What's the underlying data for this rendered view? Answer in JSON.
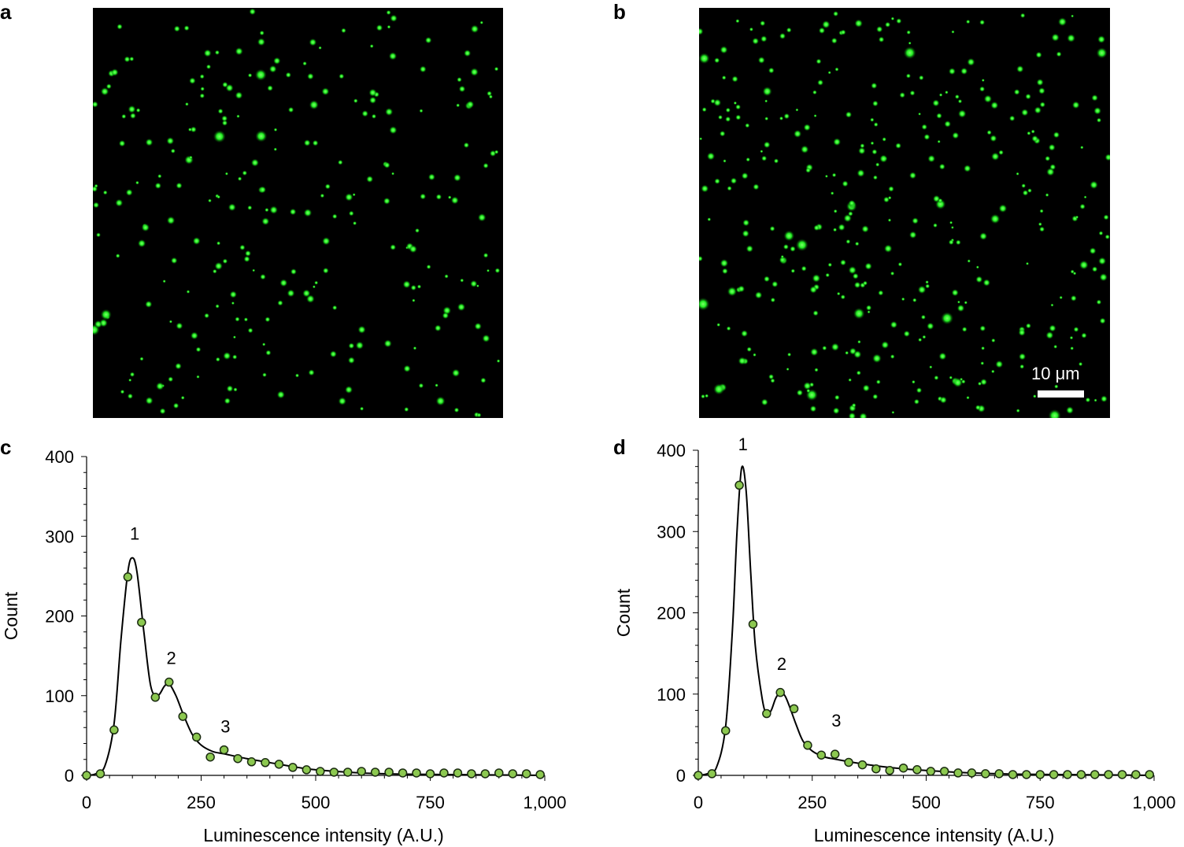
{
  "panels": {
    "a": "a",
    "b": "b",
    "c": "c",
    "d": "d"
  },
  "scale_bar": {
    "label": "10 μm"
  },
  "colors": {
    "spot": "#22ee22",
    "marker_fill": "#8cc850",
    "marker_edge": "#1a2a10",
    "curve": "#000000"
  },
  "chart_data": [
    {
      "panel": "c",
      "type": "scatter",
      "xlabel": "Luminescence intensity (A.U.)",
      "ylabel": "Count",
      "xlim": [
        0,
        1000
      ],
      "ylim": [
        0,
        400
      ],
      "xticks": [
        0,
        250,
        500,
        750,
        1000
      ],
      "xtick_labels": [
        "0",
        "250",
        "500",
        "750",
        "1,000"
      ],
      "yticks": [
        0,
        100,
        200,
        300,
        400
      ],
      "ytick_labels": [
        "0",
        "100",
        "200",
        "300",
        "400"
      ],
      "x": [
        0,
        30,
        60,
        90,
        120,
        150,
        180,
        210,
        240,
        270,
        300,
        330,
        360,
        390,
        420,
        450,
        480,
        510,
        540,
        570,
        600,
        630,
        660,
        690,
        720,
        750,
        780,
        810,
        840,
        870,
        900,
        930,
        960,
        990
      ],
      "y": [
        0,
        2,
        57,
        249,
        192,
        98,
        117,
        74,
        48,
        23,
        32,
        21,
        17,
        16,
        14,
        10,
        7,
        5,
        4,
        4,
        5,
        4,
        4,
        3,
        3,
        2,
        3,
        3,
        2,
        2,
        3,
        2,
        2,
        1
      ],
      "fit_x": [
        0,
        20,
        40,
        60,
        75,
        90,
        100,
        110,
        125,
        140,
        155,
        170,
        180,
        195,
        210,
        230,
        250,
        275,
        300,
        350,
        400,
        450,
        500,
        600,
        700,
        800,
        900,
        1000
      ],
      "fit_y": [
        0,
        2,
        12,
        65,
        170,
        255,
        273,
        255,
        180,
        112,
        100,
        112,
        115,
        100,
        78,
        52,
        38,
        30,
        27,
        21,
        16,
        11,
        7,
        3,
        1.5,
        1,
        0.5,
        0
      ],
      "annotations": [
        {
          "text": "1",
          "x": 105,
          "y": 296
        },
        {
          "text": "2",
          "x": 185,
          "y": 140
        },
        {
          "text": "3",
          "x": 303,
          "y": 54
        }
      ]
    },
    {
      "panel": "d",
      "type": "scatter",
      "xlabel": "Luminescence intensity (A.U.)",
      "ylabel": "Count",
      "xlim": [
        0,
        1000
      ],
      "ylim": [
        0,
        400
      ],
      "xticks": [
        0,
        250,
        500,
        750,
        1000
      ],
      "xtick_labels": [
        "0",
        "250",
        "500",
        "750",
        "1,000"
      ],
      "yticks": [
        0,
        100,
        200,
        300,
        400
      ],
      "ytick_labels": [
        "0",
        "100",
        "200",
        "300",
        "400"
      ],
      "x": [
        0,
        30,
        60,
        90,
        120,
        150,
        180,
        210,
        240,
        270,
        300,
        330,
        360,
        390,
        420,
        450,
        480,
        510,
        540,
        570,
        600,
        630,
        660,
        690,
        720,
        750,
        780,
        810,
        840,
        870,
        900,
        930,
        960,
        990
      ],
      "y": [
        0,
        2,
        55,
        357,
        186,
        76,
        102,
        82,
        37,
        25,
        26,
        16,
        13,
        8,
        6,
        9,
        7,
        5,
        5,
        3,
        3,
        2,
        2,
        1,
        1,
        1,
        1,
        1,
        1,
        1,
        1,
        1,
        1,
        1
      ],
      "fit_x": [
        0,
        20,
        40,
        60,
        75,
        85,
        95,
        105,
        115,
        125,
        140,
        150,
        160,
        170,
        180,
        190,
        200,
        215,
        230,
        250,
        275,
        300,
        350,
        400,
        450,
        500,
        600,
        700,
        800,
        900,
        1000
      ],
      "fit_y": [
        0,
        2,
        10,
        60,
        180,
        300,
        378,
        350,
        250,
        160,
        95,
        75,
        80,
        95,
        102,
        98,
        85,
        62,
        42,
        30,
        23,
        20,
        15,
        11,
        8,
        6,
        3,
        1.5,
        1,
        0.5,
        0
      ],
      "annotations": [
        {
          "text": "1",
          "x": 98,
          "y": 400
        },
        {
          "text": "2",
          "x": 183,
          "y": 130
        },
        {
          "text": "3",
          "x": 303,
          "y": 60
        }
      ]
    }
  ]
}
